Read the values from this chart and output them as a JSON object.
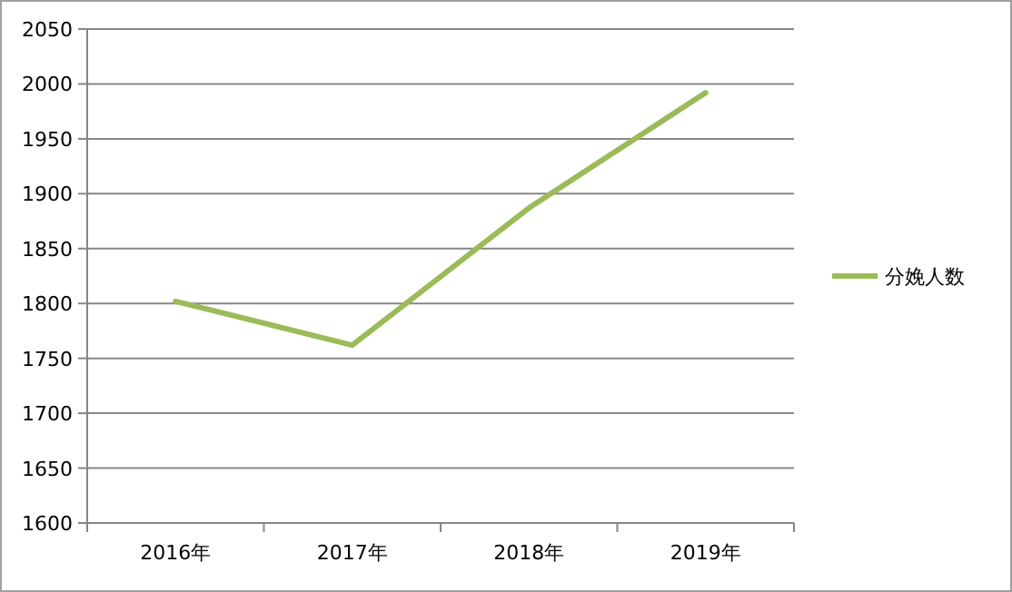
{
  "chart_data": {
    "type": "line",
    "categories": [
      "2016年",
      "2017年",
      "2018年",
      "2019年"
    ],
    "series": [
      {
        "name": "分娩人数",
        "color": "#9bbb59",
        "values": [
          1802,
          1762,
          1887,
          1992
        ]
      }
    ],
    "ylim": [
      1600,
      2050
    ],
    "yticks": [
      1600,
      1650,
      1700,
      1750,
      1800,
      1850,
      1900,
      1950,
      2000,
      2050
    ],
    "grid": "y",
    "legend": "right"
  }
}
